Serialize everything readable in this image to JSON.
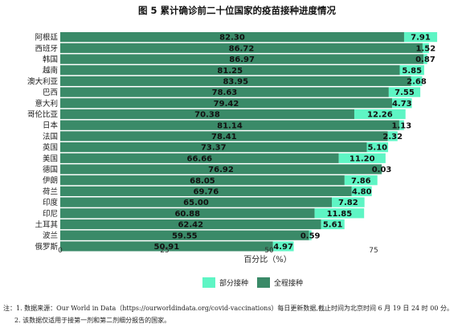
{
  "chart_data": {
    "type": "bar",
    "orientation": "horizontal",
    "stacked": true,
    "title": "图 5  累计确诊前二十位国家的疫苗接种进度情况",
    "xlabel": "百分比（%）",
    "xlim": [
      0,
      100
    ],
    "xticks": [
      0,
      25,
      50,
      75
    ],
    "categories": [
      "阿根廷",
      "西班牙",
      "韩国",
      "越南",
      "澳大利亚",
      "巴西",
      "意大利",
      "哥伦比亚",
      "日本",
      "法国",
      "英国",
      "美国",
      "德国",
      "伊朗",
      "荷兰",
      "印度",
      "印尼",
      "土耳其",
      "波兰",
      "俄罗斯"
    ],
    "series": [
      {
        "name": "全程接种",
        "color": "#3a8a68",
        "values": [
          82.3,
          86.72,
          86.97,
          81.25,
          83.95,
          78.63,
          79.42,
          70.38,
          81.14,
          78.41,
          73.37,
          66.66,
          76.92,
          68.05,
          69.76,
          65.0,
          60.88,
          62.42,
          59.55,
          50.91
        ]
      },
      {
        "name": "部分接种",
        "color": "#5ef5c4",
        "values": [
          7.91,
          1.52,
          0.87,
          5.85,
          2.68,
          7.55,
          4.73,
          12.26,
          1.13,
          2.32,
          5.1,
          11.2,
          0.03,
          7.86,
          4.8,
          7.82,
          11.85,
          5.61,
          0.59,
          4.97
        ]
      }
    ],
    "legend": {
      "placement": "bottom",
      "order": [
        "部分接种",
        "全程接种"
      ]
    },
    "grid": false
  },
  "notes": {
    "line1": "注：1. 数据来源：Our World in Data（https://ourworldindata.org/covid-vaccinations）每日更新数据,截止时间为北京时间 6 月 19 日 24 时 00 分。",
    "line2": "2. 该数据仅适用于接第一剂和第二剂细分报告的国家。"
  }
}
